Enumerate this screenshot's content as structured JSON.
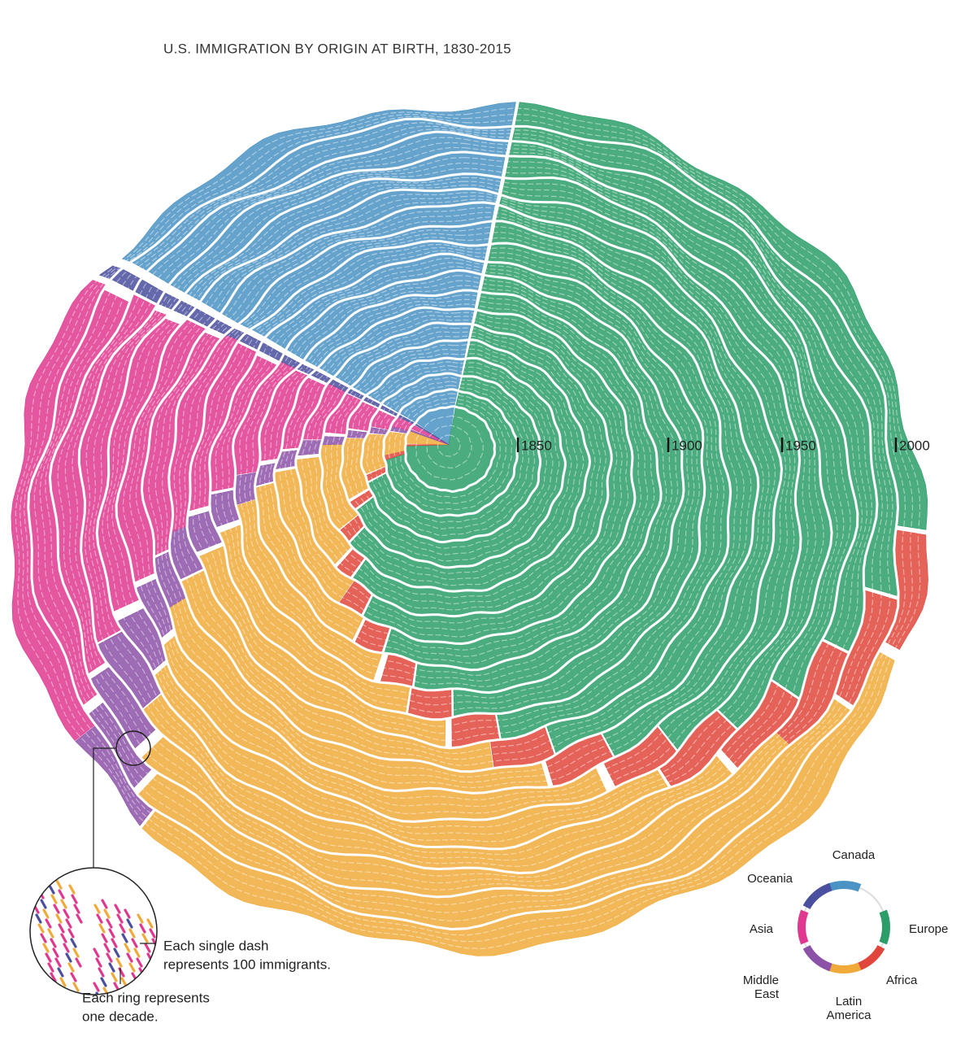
{
  "title": "U.S. IMMIGRATION BY ORIGIN AT BIRTH, 1830-2015",
  "year_markers": [
    1850,
    1900,
    1950,
    2000
  ],
  "callouts": {
    "dash": [
      "Each single dash",
      "represents 100 immigrants."
    ],
    "ring": [
      "Each ring represents",
      "one decade."
    ]
  },
  "legend": [
    {
      "label": [
        "Canada"
      ],
      "color": "#4a93c4"
    },
    {
      "label": [
        "Europe"
      ],
      "color": "#2a9d68"
    },
    {
      "label": [
        "Africa"
      ],
      "color": "#e0463c"
    },
    {
      "label": [
        "Latin",
        "America"
      ],
      "color": "#f0aa3a"
    },
    {
      "label": [
        "Middle",
        "East"
      ],
      "color": "#8c52a8"
    },
    {
      "label": [
        "Asia"
      ],
      "color": "#e0388f"
    },
    {
      "label": [
        "Oceania"
      ],
      "color": "#4a4f9e"
    }
  ]
}
